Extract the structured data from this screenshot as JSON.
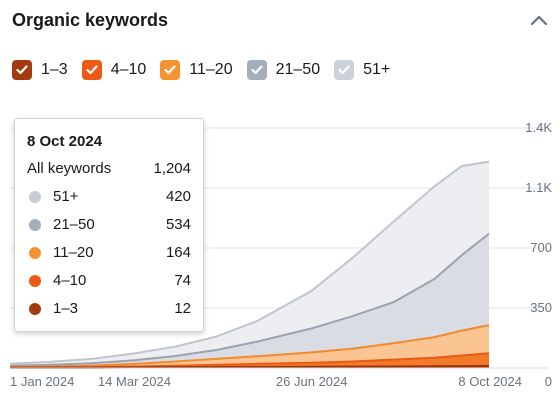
{
  "header": {
    "title": "Organic keywords",
    "collapse_icon": "chevron-up-icon"
  },
  "legend": [
    {
      "label": "1–3",
      "color": "#a33b0f",
      "checked": true
    },
    {
      "label": "4–10",
      "color": "#ee5a13",
      "checked": true
    },
    {
      "label": "11–20",
      "color": "#f59332",
      "checked": true
    },
    {
      "label": "21–50",
      "color": "#a6aeb9",
      "checked": true
    },
    {
      "label": "51+",
      "color": "#cdd2d9",
      "checked": true
    }
  ],
  "tooltip": {
    "date": "8 Oct 2024",
    "total_label": "All keywords",
    "total_value": "1,204",
    "rows": [
      {
        "label": "51+",
        "value": "420",
        "color": "#c8cdd4"
      },
      {
        "label": "21–50",
        "value": "534",
        "color": "#a6aeb9"
      },
      {
        "label": "11–20",
        "value": "164",
        "color": "#f59332"
      },
      {
        "label": "4–10",
        "value": "74",
        "color": "#ee5a13"
      },
      {
        "label": "1–3",
        "value": "12",
        "color": "#a33b0f"
      }
    ]
  },
  "chart_data": {
    "type": "area",
    "stacked": true,
    "x": [
      "2024-01-01",
      "2024-01-25",
      "2024-02-18",
      "2024-03-14",
      "2024-04-07",
      "2024-05-01",
      "2024-05-25",
      "2024-06-26",
      "2024-07-20",
      "2024-08-13",
      "2024-09-06",
      "2024-09-22",
      "2024-10-08"
    ],
    "x_tick_labels": [
      "1 Jan 2024",
      "14 Mar 2024",
      "26 Jun 2024",
      "8 Oct 2024"
    ],
    "y_tick_labels": [
      "0",
      "350",
      "700",
      "1.1K",
      "1.4K"
    ],
    "y_ticks": [
      0,
      350,
      700,
      1050,
      1400
    ],
    "ylim": [
      0,
      1400
    ],
    "grid": true,
    "series": [
      {
        "name": "1–3",
        "color": "#a33b0f",
        "values": [
          1,
          1,
          2,
          3,
          4,
          5,
          6,
          7,
          8,
          9,
          10,
          11,
          12
        ]
      },
      {
        "name": "4–10",
        "color": "#ee5a13",
        "values": [
          2,
          3,
          4,
          6,
          9,
          13,
          18,
          24,
          30,
          40,
          50,
          62,
          74
        ]
      },
      {
        "name": "11–20",
        "color": "#f59332",
        "values": [
          3,
          5,
          8,
          15,
          25,
          35,
          45,
          60,
          75,
          95,
          120,
          145,
          164
        ]
      },
      {
        "name": "21–50",
        "color": "#a6aeb9",
        "values": [
          7,
          10,
          14,
          21,
          32,
          52,
          85,
          140,
          190,
          240,
          340,
          440,
          534
        ]
      },
      {
        "name": "51+",
        "color": "#cdd2d9",
        "values": [
          12,
          17,
          25,
          40,
          55,
          78,
          120,
          220,
          340,
          470,
          540,
          520,
          420
        ]
      }
    ]
  }
}
